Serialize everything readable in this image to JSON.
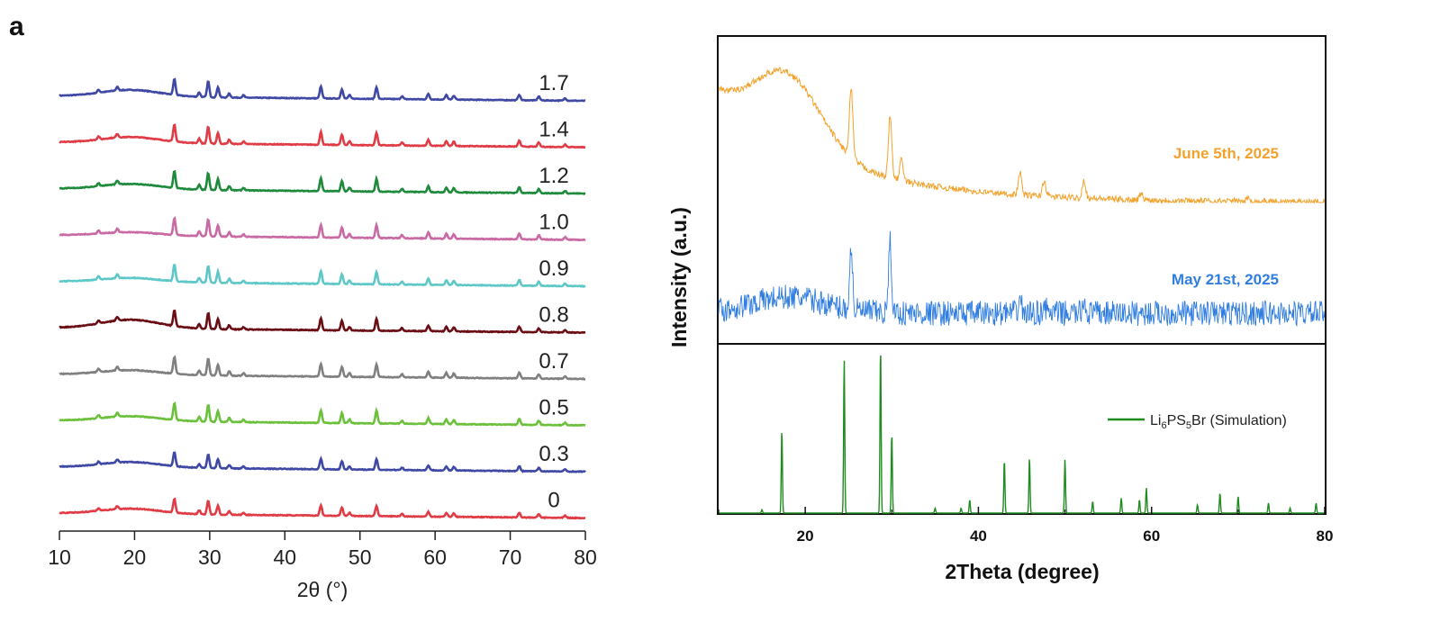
{
  "figure": {
    "panel_label": "a"
  },
  "chart_data": [
    {
      "type": "line",
      "title": "",
      "xlabel": "2θ (°)",
      "ylabel": "",
      "xlim": [
        10,
        80
      ],
      "xticks": [
        10,
        20,
        30,
        40,
        50,
        60,
        70,
        80
      ],
      "grid": false,
      "stacked": true,
      "series_label_position": "right, above each trace",
      "common_peaks": [
        {
          "x": 15.2,
          "h": 0.18
        },
        {
          "x": 17.7,
          "h": 0.22
        },
        {
          "x": 25.3,
          "h": 1.0
        },
        {
          "x": 28.6,
          "h": 0.28
        },
        {
          "x": 29.8,
          "h": 1.0
        },
        {
          "x": 31.1,
          "h": 0.65
        },
        {
          "x": 32.6,
          "h": 0.25
        },
        {
          "x": 34.5,
          "h": 0.15
        },
        {
          "x": 44.8,
          "h": 0.75
        },
        {
          "x": 47.6,
          "h": 0.6
        },
        {
          "x": 48.6,
          "h": 0.22
        },
        {
          "x": 52.2,
          "h": 0.75
        },
        {
          "x": 55.6,
          "h": 0.18
        },
        {
          "x": 59.1,
          "h": 0.35
        },
        {
          "x": 61.5,
          "h": 0.28
        },
        {
          "x": 62.5,
          "h": 0.25
        },
        {
          "x": 71.2,
          "h": 0.35
        },
        {
          "x": 73.8,
          "h": 0.25
        },
        {
          "x": 77.3,
          "h": 0.15
        }
      ],
      "series": [
        {
          "name": "1.7",
          "color": "#3f48a4",
          "hump": 0.62,
          "peak_scale": 0.8
        },
        {
          "name": "1.4",
          "color": "#e03c46",
          "hump": 0.55,
          "peak_scale": 0.85
        },
        {
          "name": "1.2",
          "color": "#1e8a3c",
          "hump": 0.5,
          "peak_scale": 0.85
        },
        {
          "name": "1.0",
          "color": "#c96aa4",
          "hump": 0.32,
          "peak_scale": 0.85
        },
        {
          "name": "0.9",
          "color": "#5ec8c8",
          "hump": 0.38,
          "peak_scale": 0.85
        },
        {
          "name": "0.8",
          "color": "#6b0d14",
          "hump": 0.8,
          "peak_scale": 0.8
        },
        {
          "name": "0.7",
          "color": "#808080",
          "hump": 0.42,
          "peak_scale": 0.85
        },
        {
          "name": "0.5",
          "color": "#6cc13c",
          "hump": 0.45,
          "peak_scale": 0.85
        },
        {
          "name": "0.3",
          "color": "#3f48a4",
          "hump": 0.5,
          "peak_scale": 0.7
        },
        {
          "name": "0",
          "color": "#e03c46",
          "hump": 0.48,
          "peak_scale": 0.7
        }
      ]
    },
    {
      "type": "line",
      "title": "",
      "xlabel": "2Theta (degree)",
      "ylabel": "Intensity (a.u.)",
      "xlim": [
        10,
        80
      ],
      "xticks": [
        20,
        40,
        60,
        80
      ],
      "grid": false,
      "legend_position": "right, middle of lower panel",
      "series": [
        {
          "name": "June 5th, 2025",
          "color": "#f2a22c",
          "label_position": "right",
          "peaks": [
            {
              "x": 25.3,
              "h": 0.95
            },
            {
              "x": 29.8,
              "h": 0.85
            },
            {
              "x": 31.1,
              "h": 0.3
            },
            {
              "x": 44.8,
              "h": 0.3
            },
            {
              "x": 47.6,
              "h": 0.22
            },
            {
              "x": 52.2,
              "h": 0.25
            },
            {
              "x": 58.8,
              "h": 0.08
            },
            {
              "x": 71.2,
              "h": 0.05
            }
          ]
        },
        {
          "name": "May 21st, 2025",
          "color": "#2f7de0",
          "label_position": "right",
          "peaks": [
            {
              "x": 25.3,
              "h": 0.6
            },
            {
              "x": 29.8,
              "h": 0.7
            },
            {
              "x": 44.8,
              "h": 0.15
            },
            {
              "x": 47.6,
              "h": 0.1
            },
            {
              "x": 52.2,
              "h": 0.12
            }
          ]
        },
        {
          "name": "Li6PS5Br (Simulation)",
          "legend_parts": {
            "base": "Li",
            "s1": "6",
            "mid": "PS",
            "s2": "5",
            "end": "Br (Simulation)"
          },
          "color": "#1e8c1e",
          "peaks": [
            {
              "x": 15.0,
              "h": 0.02
            },
            {
              "x": 17.3,
              "h": 0.5
            },
            {
              "x": 24.5,
              "h": 0.92
            },
            {
              "x": 28.7,
              "h": 1.0
            },
            {
              "x": 30.0,
              "h": 0.48
            },
            {
              "x": 35.0,
              "h": 0.03
            },
            {
              "x": 38.0,
              "h": 0.03
            },
            {
              "x": 39.0,
              "h": 0.08
            },
            {
              "x": 43.0,
              "h": 0.32
            },
            {
              "x": 45.9,
              "h": 0.33
            },
            {
              "x": 50.0,
              "h": 0.32
            },
            {
              "x": 53.2,
              "h": 0.07
            },
            {
              "x": 56.5,
              "h": 0.09
            },
            {
              "x": 58.6,
              "h": 0.08
            },
            {
              "x": 59.4,
              "h": 0.15
            },
            {
              "x": 65.3,
              "h": 0.05
            },
            {
              "x": 67.9,
              "h": 0.12
            },
            {
              "x": 70.0,
              "h": 0.1
            },
            {
              "x": 73.5,
              "h": 0.06
            },
            {
              "x": 76.0,
              "h": 0.03
            },
            {
              "x": 79.0,
              "h": 0.06
            }
          ]
        }
      ]
    }
  ]
}
